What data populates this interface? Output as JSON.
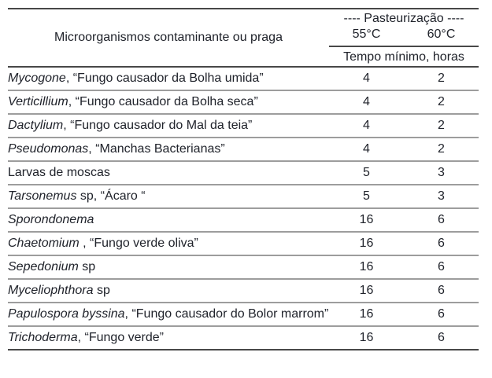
{
  "table": {
    "header": {
      "name_column": "Microorganismos contaminante ou praga",
      "group_label": "---- Pasteurização ----",
      "temp_55": "55°C",
      "temp_60": "60°C",
      "sub_label": "Tempo mínimo, horas"
    },
    "rows": [
      {
        "name_italic": "Mycogone",
        "name_rest": ", “Fungo causador da Bolha umida”",
        "h55": "4",
        "h60": "2"
      },
      {
        "name_italic": "Verticillium",
        "name_rest": ", “Fungo causador da Bolha seca”",
        "h55": "4",
        "h60": "2"
      },
      {
        "name_italic": "Dactylium",
        "name_rest": ", “Fungo causador do Mal da teia”",
        "h55": "4",
        "h60": "2"
      },
      {
        "name_italic": "Pseudomonas",
        "name_rest": ", “Manchas Bacterianas”",
        "h55": "4",
        "h60": "2"
      },
      {
        "name_italic": "",
        "name_rest": "Larvas de moscas",
        "h55": "5",
        "h60": "3"
      },
      {
        "name_italic": "Tarsonemus",
        "name_rest": " sp, “Ácaro “",
        "h55": "5",
        "h60": "3"
      },
      {
        "name_italic": "Sporondonema",
        "name_rest": "",
        "h55": "16",
        "h60": "6"
      },
      {
        "name_italic": "Chaetomium",
        "name_rest": " , “Fungo verde oliva”",
        "h55": "16",
        "h60": "6"
      },
      {
        "name_italic": "Sepedonium",
        "name_rest": " sp",
        "h55": "16",
        "h60": "6"
      },
      {
        "name_italic": "Myceliophthora",
        "name_rest": " sp",
        "h55": "16",
        "h60": "6"
      },
      {
        "name_italic": "Papulospora byssina",
        "name_rest": ", “Fungo causador do Bolor marrom”",
        "h55": "16",
        "h60": "6"
      },
      {
        "name_italic": "Trichoderma",
        "name_rest": ", “Fungo verde”",
        "h55": "16",
        "h60": "6"
      }
    ],
    "colors": {
      "text": "#20232b",
      "rule_dark": "#484848",
      "rule_light": "#9d9d9d",
      "background": "#ffffff"
    }
  }
}
